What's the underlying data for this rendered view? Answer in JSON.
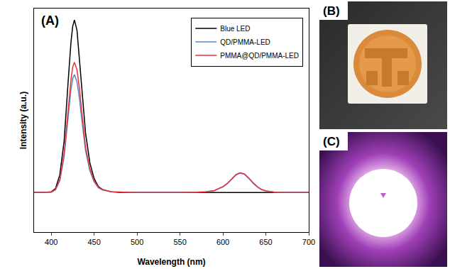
{
  "chart_data": {
    "type": "line",
    "panel": "(A)",
    "x_label": "Wavelength (nm)",
    "y_label": "Intensity (a.u.)",
    "x": [
      380,
      390,
      400,
      405,
      410,
      415,
      420,
      423,
      425,
      427,
      430,
      433,
      435,
      440,
      445,
      450,
      455,
      460,
      470,
      480,
      500,
      550,
      560,
      570,
      580,
      590,
      600,
      605,
      610,
      615,
      620,
      623,
      625,
      630,
      635,
      640,
      645,
      650,
      660,
      670,
      700
    ],
    "series": [
      {
        "name": "Blue LED",
        "color": "#000000",
        "values": [
          0,
          0,
          0.02,
          0.1,
          0.45,
          1.3,
          2.9,
          3.8,
          4.2,
          4.36,
          4.1,
          3.4,
          2.8,
          1.5,
          0.75,
          0.35,
          0.15,
          0.07,
          0.02,
          0,
          0,
          0,
          0,
          0,
          0,
          0,
          0,
          0,
          0,
          0,
          0,
          0,
          0,
          0,
          0,
          0,
          0,
          0,
          0,
          0,
          0
        ]
      },
      {
        "name": "QD/PMMA-LED",
        "color": "#5b87c5",
        "values": [
          0,
          0,
          0.01,
          0.07,
          0.3,
          0.9,
          2.0,
          2.6,
          2.88,
          2.98,
          2.8,
          2.35,
          1.95,
          1.05,
          0.55,
          0.27,
          0.12,
          0.06,
          0.02,
          0.01,
          0,
          0,
          0,
          0.01,
          0.02,
          0.05,
          0.14,
          0.22,
          0.33,
          0.44,
          0.49,
          0.48,
          0.46,
          0.36,
          0.24,
          0.14,
          0.07,
          0.04,
          0.01,
          0,
          0
        ]
      },
      {
        "name": "PMMA@QD/PMMA-LED",
        "color": "#e8333a",
        "values": [
          0,
          0,
          0.01,
          0.08,
          0.33,
          1.0,
          2.2,
          2.85,
          3.17,
          3.29,
          3.1,
          2.6,
          2.15,
          1.15,
          0.6,
          0.3,
          0.13,
          0.07,
          0.02,
          0.01,
          0,
          0,
          0,
          0.01,
          0.02,
          0.05,
          0.15,
          0.23,
          0.34,
          0.45,
          0.5,
          0.49,
          0.47,
          0.37,
          0.25,
          0.15,
          0.08,
          0.04,
          0.01,
          0,
          0
        ]
      }
    ],
    "xlim": [
      380,
      700
    ],
    "xticks": [
      400,
      450,
      500,
      550,
      600,
      650,
      700
    ],
    "ylim": [
      -1,
      4.65
    ],
    "tick_labels": "x",
    "legend": "upper right",
    "grid": false
  },
  "photos": [
    {
      "label": "(B)"
    },
    {
      "label": "(C)"
    }
  ]
}
